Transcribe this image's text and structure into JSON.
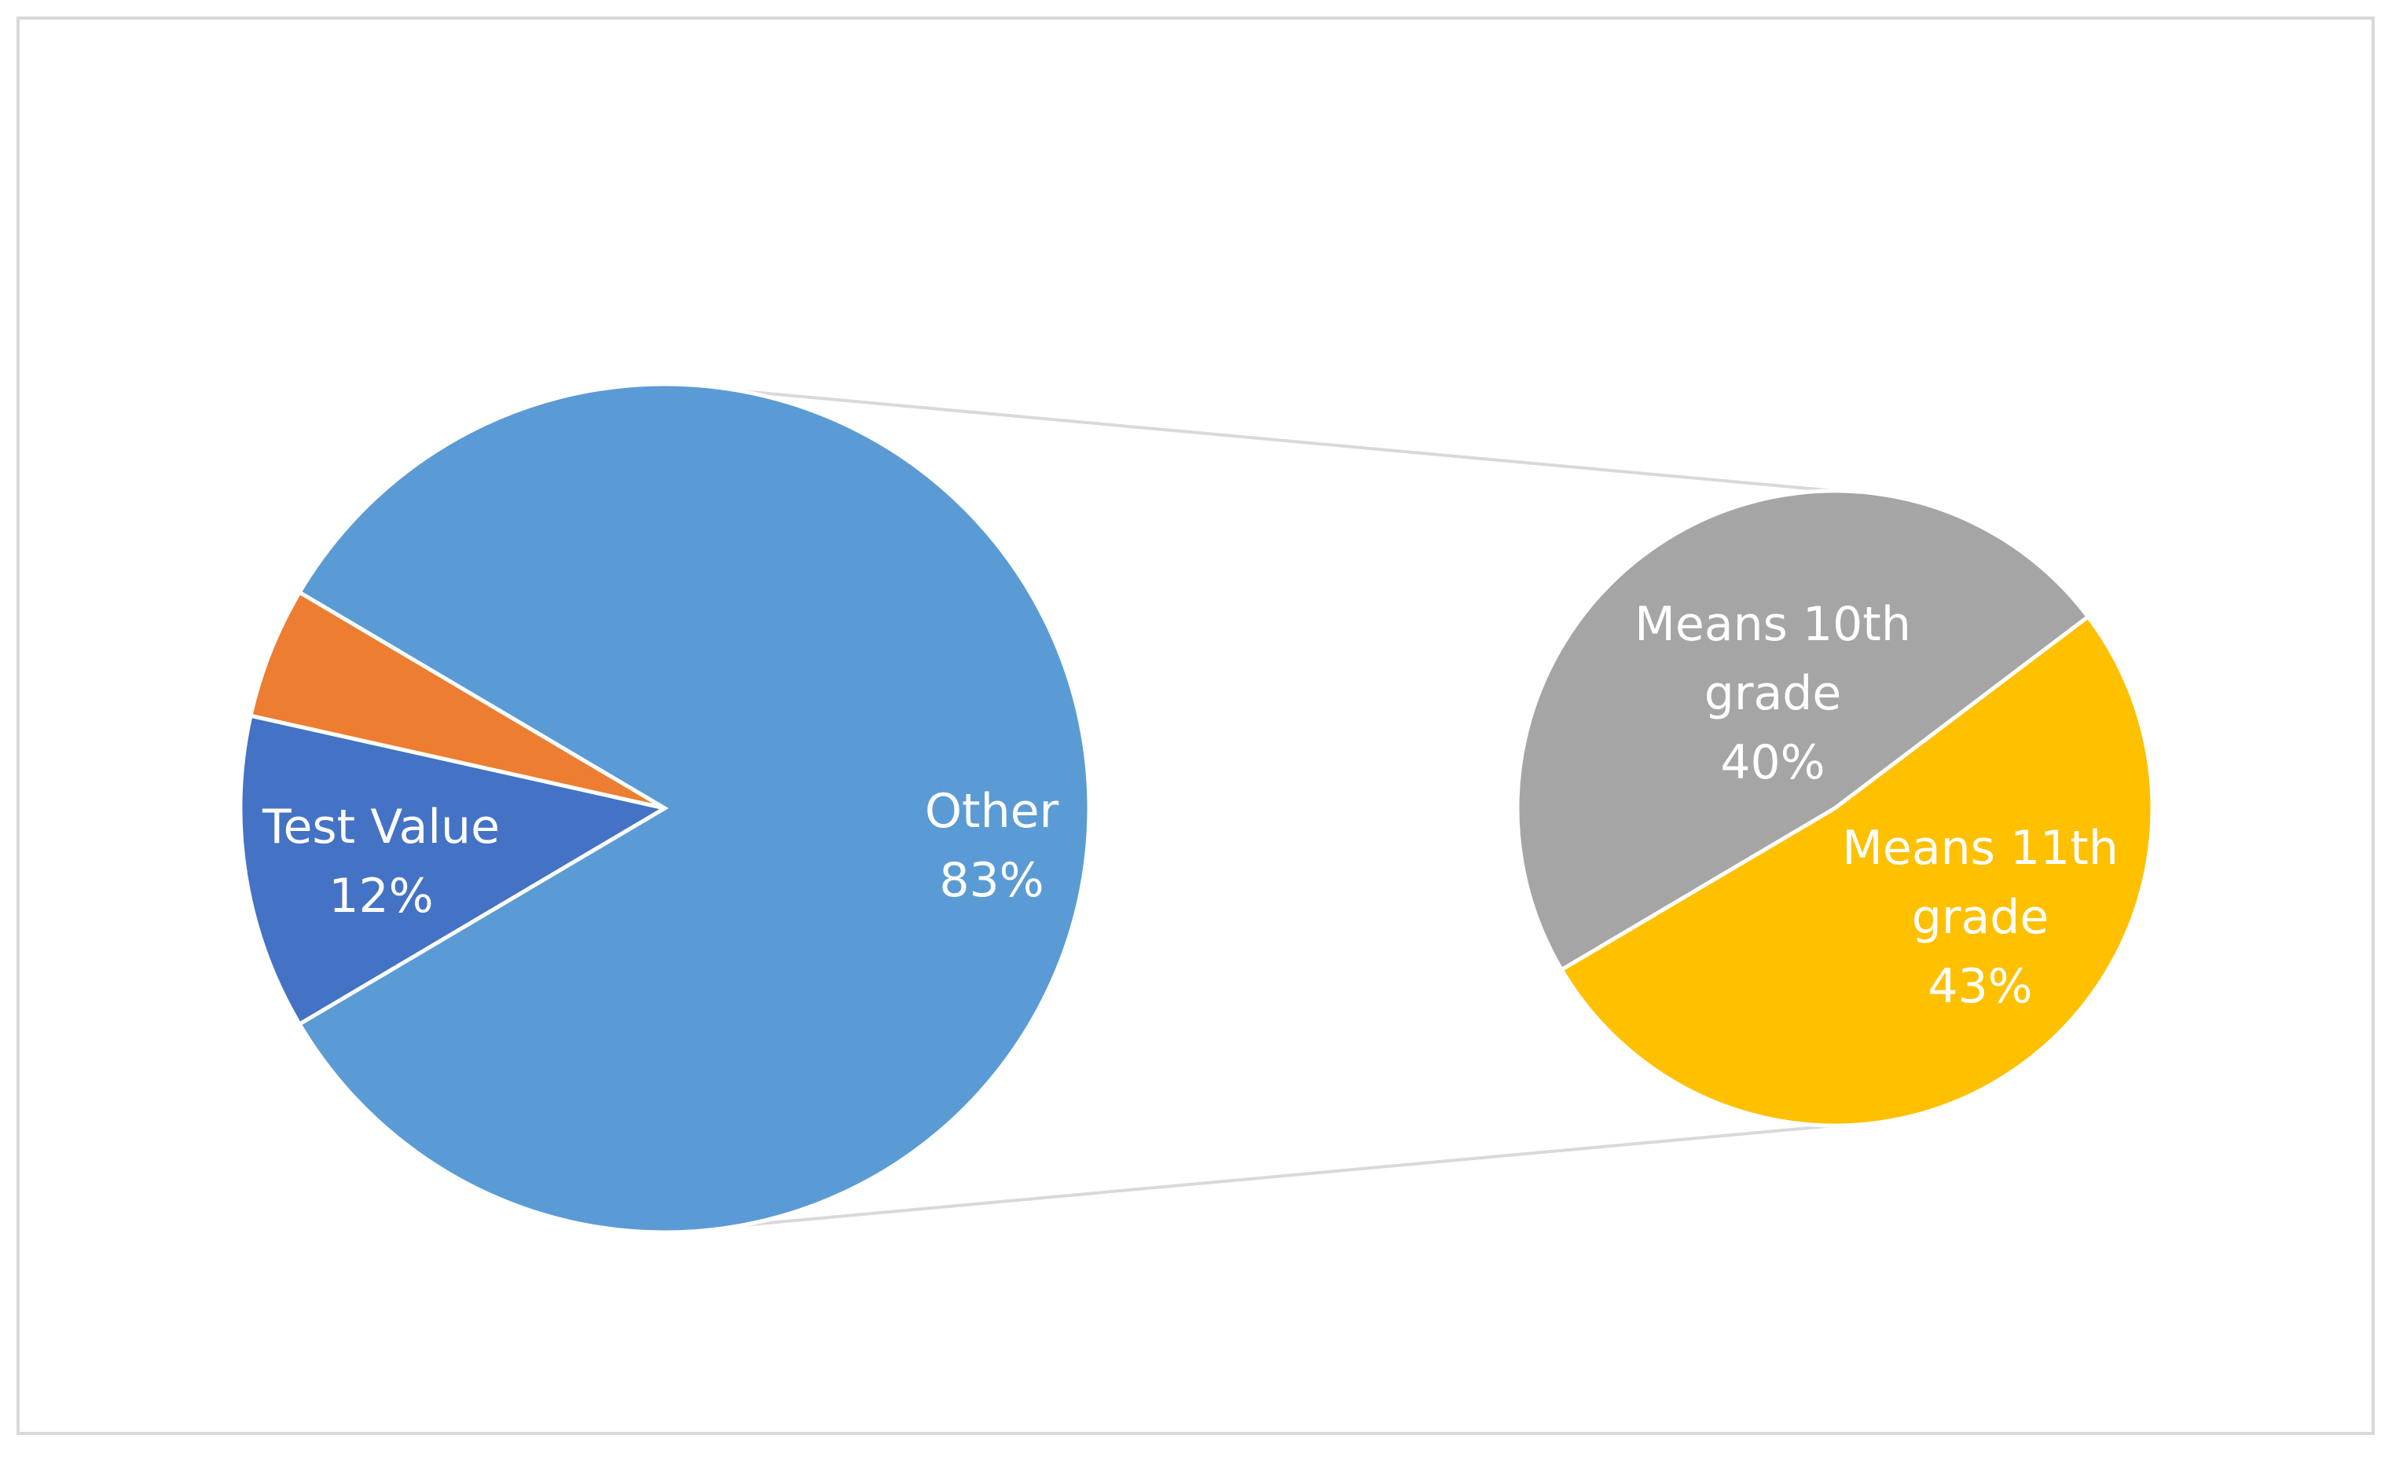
{
  "chart_data": {
    "type": "pie",
    "categories": [
      "Test Value",
      null,
      "Other"
    ],
    "values": [
      12,
      5,
      83
    ],
    "value_labels": [
      "12%",
      null,
      "83%"
    ],
    "colors": [
      "#4472c4",
      "#ed7d31",
      "#5b9bd5"
    ],
    "secondary": {
      "categories": [
        "Means 10th grade",
        "Means 11th grade"
      ],
      "values": [
        40,
        43
      ],
      "value_labels": [
        "40%",
        "43%"
      ],
      "colors": [
        "#a5a5a5",
        "#ffc000"
      ]
    }
  }
}
